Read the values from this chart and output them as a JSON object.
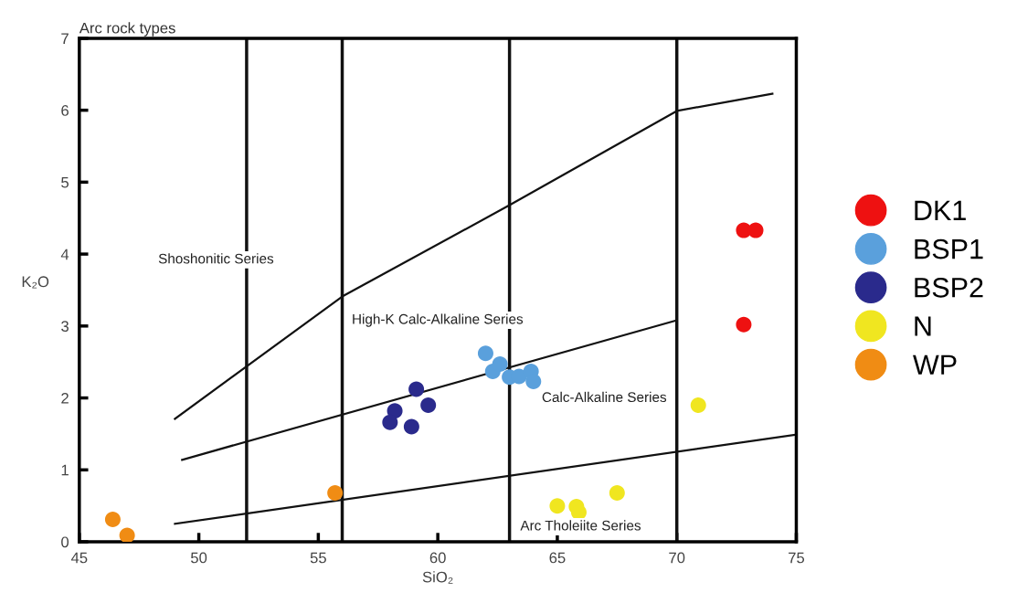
{
  "chart_data": {
    "type": "scatter",
    "title": "Arc rock types",
    "xlabel": "SiO₂",
    "ylabel": "K₂O",
    "xlim": [
      45,
      75
    ],
    "xticks": [
      45,
      50,
      55,
      60,
      65,
      70,
      75
    ],
    "ylim": [
      0,
      7
    ],
    "yticks": [
      0,
      1,
      2,
      3,
      4,
      5,
      6,
      7
    ],
    "grid": false,
    "legend": "right",
    "marker": "circle",
    "series": [
      {
        "name": "DK1",
        "color": "#ee1111",
        "x": [
          72.8,
          73.3,
          72.8
        ],
        "values": [
          4.33,
          4.33,
          3.02
        ]
      },
      {
        "name": "BSP1",
        "color": "#5aa0dc",
        "x": [
          62.0,
          62.3,
          62.6,
          63.0,
          63.4,
          63.9,
          64.0
        ],
        "values": [
          2.62,
          2.37,
          2.47,
          2.29,
          2.3,
          2.37,
          2.23
        ]
      },
      {
        "name": "BSP2",
        "color": "#2a2a8c",
        "x": [
          59.1,
          58.2,
          59.6,
          58.0,
          58.9
        ],
        "values": [
          2.12,
          1.82,
          1.9,
          1.66,
          1.6
        ]
      },
      {
        "name": "N",
        "color": "#f0e620",
        "x": [
          70.9,
          65.0,
          65.8,
          65.9,
          67.5
        ],
        "values": [
          1.9,
          0.5,
          0.49,
          0.41,
          0.68
        ]
      },
      {
        "name": "WP",
        "color": "#f08c14",
        "x": [
          46.4,
          47.0,
          55.7
        ],
        "values": [
          0.31,
          0.09,
          0.68
        ]
      },
      {
        "type": "line",
        "marker": "none",
        "color": "#111111",
        "x": [
          49.0,
          56.0,
          63.0,
          70.0,
          74.0
        ],
        "values": [
          1.71,
          3.41,
          4.68,
          5.99,
          6.23
        ]
      },
      {
        "type": "line",
        "marker": "none",
        "color": "#111111",
        "x": [
          49.3,
          70.0
        ],
        "values": [
          1.14,
          3.08
        ]
      },
      {
        "type": "line",
        "marker": "none",
        "color": "#111111",
        "x": [
          49.0,
          75.0
        ],
        "values": [
          0.25,
          1.49
        ]
      }
    ],
    "ref_lines": [
      {
        "axis": "x",
        "value": 52,
        "color": "#111111"
      },
      {
        "axis": "x",
        "value": 56,
        "color": "#111111"
      },
      {
        "axis": "x",
        "value": 63,
        "color": "#111111"
      },
      {
        "axis": "x",
        "value": 70,
        "color": "#111111"
      }
    ],
    "annotations": [
      "Shoshonitic Series",
      "High-K Calc-Alkaline Series",
      "Calc-Alkaline Series",
      "Arc Tholeiite Series"
    ]
  }
}
